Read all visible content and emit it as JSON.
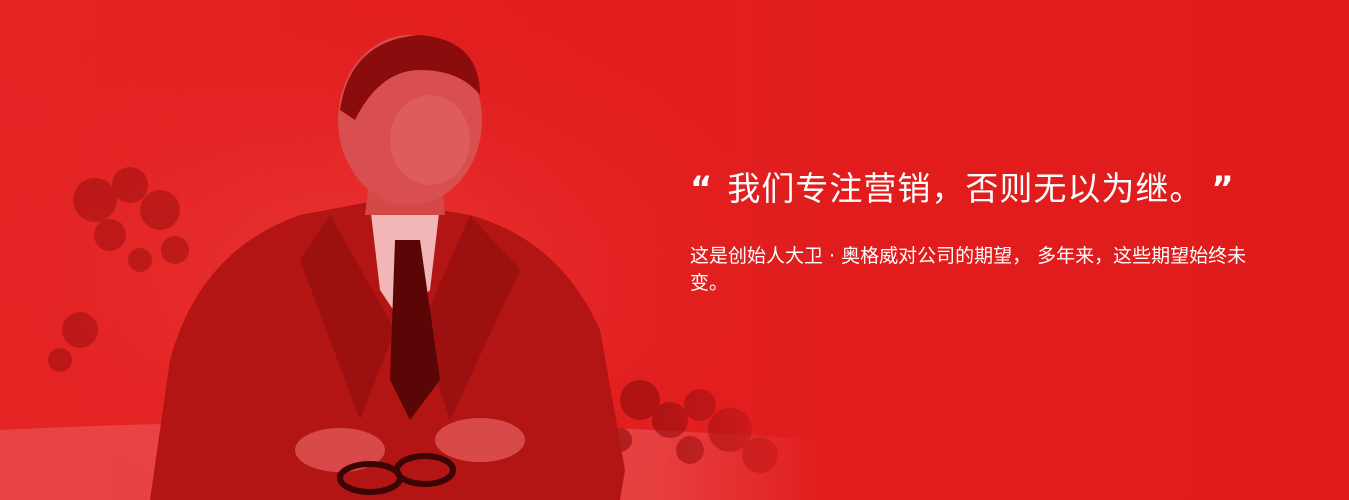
{
  "banner": {
    "quote_open": "“",
    "headline": "我们专注营销，否则无以为继。",
    "quote_close": "”",
    "subtext": "这是创始人大卫 · 奥格威对公司的期望， 多年来，这些期望始终未变。"
  },
  "photo": {
    "subject": "founder-portrait",
    "tint_color": "#e11e1e"
  },
  "colors": {
    "background": "#e11e1e",
    "text": "#ffffff"
  }
}
